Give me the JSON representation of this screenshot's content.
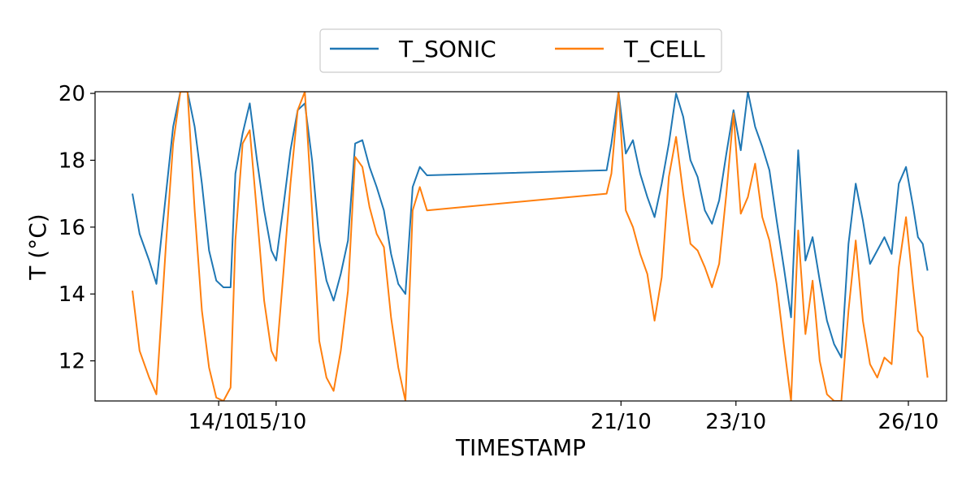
{
  "chart_data": {
    "type": "line",
    "xlabel": "TIMESTAMP",
    "ylabel": "T (°C)",
    "x_range": [
      "2023-10-12T12:00",
      "2023-10-26T00:00"
    ],
    "ylim": [
      10.8,
      20.05
    ],
    "y_ticks": [
      12,
      14,
      16,
      18,
      20
    ],
    "y_tick_labels": [
      "12",
      "14",
      "16",
      "18",
      "20"
    ],
    "x_ticks": [
      "2023-10-14T00:00",
      "2023-10-15T00:00",
      "2023-10-21T00:00",
      "2023-10-23T00:00",
      "2023-10-26T00:00"
    ],
    "x_tick_labels": [
      "14/10",
      "15/10",
      "21/10",
      "23/10",
      "26/10"
    ],
    "legend_position": "top-center",
    "grid": false,
    "series": [
      {
        "name": "T_SONIC",
        "color": "#1f77b4",
        "points": [
          [
            "2023-10-12T12:00",
            17.0
          ],
          [
            "2023-10-12T15:00",
            15.8
          ],
          [
            "2023-10-12T19:00",
            15.0
          ],
          [
            "2023-10-12T22:00",
            14.3
          ],
          [
            "2023-10-13T02:00",
            17.0
          ],
          [
            "2023-10-13T05:00",
            19.0
          ],
          [
            "2023-10-13T08:00",
            20.05
          ],
          [
            "2023-10-13T11:00",
            20.05
          ],
          [
            "2023-10-13T14:00",
            19.0
          ],
          [
            "2023-10-13T17:00",
            17.3
          ],
          [
            "2023-10-13T20:00",
            15.3
          ],
          [
            "2023-10-13T23:00",
            14.4
          ],
          [
            "2023-10-14T02:00",
            14.2
          ],
          [
            "2023-10-14T05:00",
            14.2
          ],
          [
            "2023-10-14T07:00",
            17.6
          ],
          [
            "2023-10-14T10:00",
            18.8
          ],
          [
            "2023-10-14T13:00",
            19.7
          ],
          [
            "2023-10-14T16:00",
            18.0
          ],
          [
            "2023-10-14T19:00",
            16.5
          ],
          [
            "2023-10-14T22:00",
            15.3
          ],
          [
            "2023-10-15T00:00",
            15.0
          ],
          [
            "2023-10-15T03:00",
            16.6
          ],
          [
            "2023-10-15T06:00",
            18.3
          ],
          [
            "2023-10-15T09:00",
            19.5
          ],
          [
            "2023-10-15T12:00",
            19.7
          ],
          [
            "2023-10-15T15:00",
            18.0
          ],
          [
            "2023-10-15T18:00",
            15.6
          ],
          [
            "2023-10-15T21:00",
            14.4
          ],
          [
            "2023-10-16T00:00",
            13.8
          ],
          [
            "2023-10-16T03:00",
            14.6
          ],
          [
            "2023-10-16T06:00",
            15.6
          ],
          [
            "2023-10-16T09:00",
            18.5
          ],
          [
            "2023-10-16T12:00",
            18.6
          ],
          [
            "2023-10-16T15:00",
            17.8
          ],
          [
            "2023-10-16T18:00",
            17.2
          ],
          [
            "2023-10-16T21:00",
            16.5
          ],
          [
            "2023-10-17T00:00",
            15.2
          ],
          [
            "2023-10-17T03:00",
            14.3
          ],
          [
            "2023-10-17T06:00",
            14.0
          ],
          [
            "2023-10-17T09:00",
            17.2
          ],
          [
            "2023-10-17T12:00",
            17.8
          ],
          [
            "2023-10-17T15:00",
            17.55
          ],
          [
            "2023-10-20T18:00",
            17.7
          ],
          [
            "2023-10-20T20:00",
            18.5
          ],
          [
            "2023-10-20T23:00",
            20.05
          ],
          [
            "2023-10-21T02:00",
            18.2
          ],
          [
            "2023-10-21T05:00",
            18.6
          ],
          [
            "2023-10-21T08:00",
            17.6
          ],
          [
            "2023-10-21T11:00",
            16.9
          ],
          [
            "2023-10-21T14:00",
            16.3
          ],
          [
            "2023-10-21T17:00",
            17.3
          ],
          [
            "2023-10-21T20:00",
            18.5
          ],
          [
            "2023-10-21T23:00",
            20.0
          ],
          [
            "2023-10-22T02:00",
            19.3
          ],
          [
            "2023-10-22T05:00",
            18.0
          ],
          [
            "2023-10-22T08:00",
            17.5
          ],
          [
            "2023-10-22T11:00",
            16.5
          ],
          [
            "2023-10-22T14:00",
            16.1
          ],
          [
            "2023-10-22T17:00",
            16.8
          ],
          [
            "2023-10-22T20:00",
            18.2
          ],
          [
            "2023-10-22T23:00",
            19.5
          ],
          [
            "2023-10-23T02:00",
            18.3
          ],
          [
            "2023-10-23T05:00",
            20.05
          ],
          [
            "2023-10-23T08:00",
            19.0
          ],
          [
            "2023-10-23T11:00",
            18.4
          ],
          [
            "2023-10-23T14:00",
            17.7
          ],
          [
            "2023-10-23T17:00",
            16.2
          ],
          [
            "2023-10-23T20:00",
            14.8
          ],
          [
            "2023-10-23T23:00",
            13.3
          ],
          [
            "2023-10-24T02:00",
            18.3
          ],
          [
            "2023-10-24T05:00",
            15.0
          ],
          [
            "2023-10-24T08:00",
            15.7
          ],
          [
            "2023-10-24T11:00",
            14.4
          ],
          [
            "2023-10-24T14:00",
            13.2
          ],
          [
            "2023-10-24T17:00",
            12.5
          ],
          [
            "2023-10-24T20:00",
            12.1
          ],
          [
            "2023-10-24T23:00",
            15.5
          ],
          [
            "2023-10-25T02:00",
            17.3
          ],
          [
            "2023-10-25T05:00",
            16.2
          ],
          [
            "2023-10-25T08:00",
            14.9
          ],
          [
            "2023-10-25T11:00",
            15.3
          ],
          [
            "2023-10-25T14:00",
            15.7
          ],
          [
            "2023-10-25T17:00",
            15.2
          ],
          [
            "2023-10-25T20:00",
            17.3
          ],
          [
            "2023-10-25T23:00",
            17.8
          ],
          [
            "2023-10-26T02:00",
            16.6
          ],
          [
            "2023-10-26T04:00",
            15.7
          ],
          [
            "2023-10-26T06:00",
            15.5
          ],
          [
            "2023-10-26T08:00",
            14.7
          ]
        ]
      },
      {
        "name": "T_CELL",
        "color": "#ff7f0e",
        "points": [
          [
            "2023-10-12T12:00",
            14.1
          ],
          [
            "2023-10-12T15:00",
            12.3
          ],
          [
            "2023-10-12T19:00",
            11.5
          ],
          [
            "2023-10-12T22:00",
            11.0
          ],
          [
            "2023-10-13T02:00",
            15.5
          ],
          [
            "2023-10-13T05:00",
            18.5
          ],
          [
            "2023-10-13T08:00",
            20.05
          ],
          [
            "2023-10-13T11:00",
            20.05
          ],
          [
            "2023-10-13T14:00",
            16.5
          ],
          [
            "2023-10-13T17:00",
            13.5
          ],
          [
            "2023-10-13T20:00",
            11.8
          ],
          [
            "2023-10-13T23:00",
            10.9
          ],
          [
            "2023-10-14T02:00",
            10.8
          ],
          [
            "2023-10-14T05:00",
            11.2
          ],
          [
            "2023-10-14T07:00",
            15.6
          ],
          [
            "2023-10-14T10:00",
            18.5
          ],
          [
            "2023-10-14T13:00",
            18.9
          ],
          [
            "2023-10-14T16:00",
            16.4
          ],
          [
            "2023-10-14T19:00",
            13.8
          ],
          [
            "2023-10-14T22:00",
            12.3
          ],
          [
            "2023-10-15T00:00",
            12.0
          ],
          [
            "2023-10-15T03:00",
            14.6
          ],
          [
            "2023-10-15T06:00",
            17.3
          ],
          [
            "2023-10-15T09:00",
            19.5
          ],
          [
            "2023-10-15T12:00",
            20.05
          ],
          [
            "2023-10-15T15:00",
            16.5
          ],
          [
            "2023-10-15T18:00",
            12.6
          ],
          [
            "2023-10-15T21:00",
            11.5
          ],
          [
            "2023-10-16T00:00",
            11.1
          ],
          [
            "2023-10-16T03:00",
            12.3
          ],
          [
            "2023-10-16T06:00",
            14.1
          ],
          [
            "2023-10-16T09:00",
            18.1
          ],
          [
            "2023-10-16T12:00",
            17.8
          ],
          [
            "2023-10-16T15:00",
            16.6
          ],
          [
            "2023-10-16T18:00",
            15.8
          ],
          [
            "2023-10-16T21:00",
            15.4
          ],
          [
            "2023-10-17T00:00",
            13.3
          ],
          [
            "2023-10-17T03:00",
            11.8
          ],
          [
            "2023-10-17T06:00",
            10.8
          ],
          [
            "2023-10-17T09:00",
            16.5
          ],
          [
            "2023-10-17T12:00",
            17.2
          ],
          [
            "2023-10-17T15:00",
            16.5
          ],
          [
            "2023-10-20T18:00",
            17.0
          ],
          [
            "2023-10-20T20:00",
            17.6
          ],
          [
            "2023-10-20T23:00",
            20.05
          ],
          [
            "2023-10-21T02:00",
            16.5
          ],
          [
            "2023-10-21T05:00",
            16.0
          ],
          [
            "2023-10-21T08:00",
            15.2
          ],
          [
            "2023-10-21T11:00",
            14.6
          ],
          [
            "2023-10-21T14:00",
            13.2
          ],
          [
            "2023-10-21T17:00",
            14.5
          ],
          [
            "2023-10-21T20:00",
            17.5
          ],
          [
            "2023-10-21T23:00",
            18.7
          ],
          [
            "2023-10-22T02:00",
            17.0
          ],
          [
            "2023-10-22T05:00",
            15.5
          ],
          [
            "2023-10-22T08:00",
            15.3
          ],
          [
            "2023-10-22T11:00",
            14.8
          ],
          [
            "2023-10-22T14:00",
            14.2
          ],
          [
            "2023-10-22T17:00",
            14.9
          ],
          [
            "2023-10-22T20:00",
            17.0
          ],
          [
            "2023-10-22T23:00",
            19.4
          ],
          [
            "2023-10-23T02:00",
            16.4
          ],
          [
            "2023-10-23T05:00",
            16.9
          ],
          [
            "2023-10-23T08:00",
            17.9
          ],
          [
            "2023-10-23T11:00",
            16.3
          ],
          [
            "2023-10-23T14:00",
            15.6
          ],
          [
            "2023-10-23T17:00",
            14.3
          ],
          [
            "2023-10-23T20:00",
            12.5
          ],
          [
            "2023-10-23T23:00",
            10.8
          ],
          [
            "2023-10-24T02:00",
            15.9
          ],
          [
            "2023-10-24T05:00",
            12.8
          ],
          [
            "2023-10-24T08:00",
            14.4
          ],
          [
            "2023-10-24T11:00",
            12.0
          ],
          [
            "2023-10-24T14:00",
            11.0
          ],
          [
            "2023-10-24T17:00",
            10.8
          ],
          [
            "2023-10-24T20:00",
            10.8
          ],
          [
            "2023-10-24T23:00",
            13.5
          ],
          [
            "2023-10-25T02:00",
            15.6
          ],
          [
            "2023-10-25T05:00",
            13.2
          ],
          [
            "2023-10-25T08:00",
            11.9
          ],
          [
            "2023-10-25T11:00",
            11.5
          ],
          [
            "2023-10-25T14:00",
            12.1
          ],
          [
            "2023-10-25T17:00",
            11.9
          ],
          [
            "2023-10-25T20:00",
            14.8
          ],
          [
            "2023-10-25T23:00",
            16.3
          ],
          [
            "2023-10-26T02:00",
            14.2
          ],
          [
            "2023-10-26T04:00",
            12.9
          ],
          [
            "2023-10-26T06:00",
            12.7
          ],
          [
            "2023-10-26T08:00",
            11.5
          ]
        ]
      }
    ]
  }
}
